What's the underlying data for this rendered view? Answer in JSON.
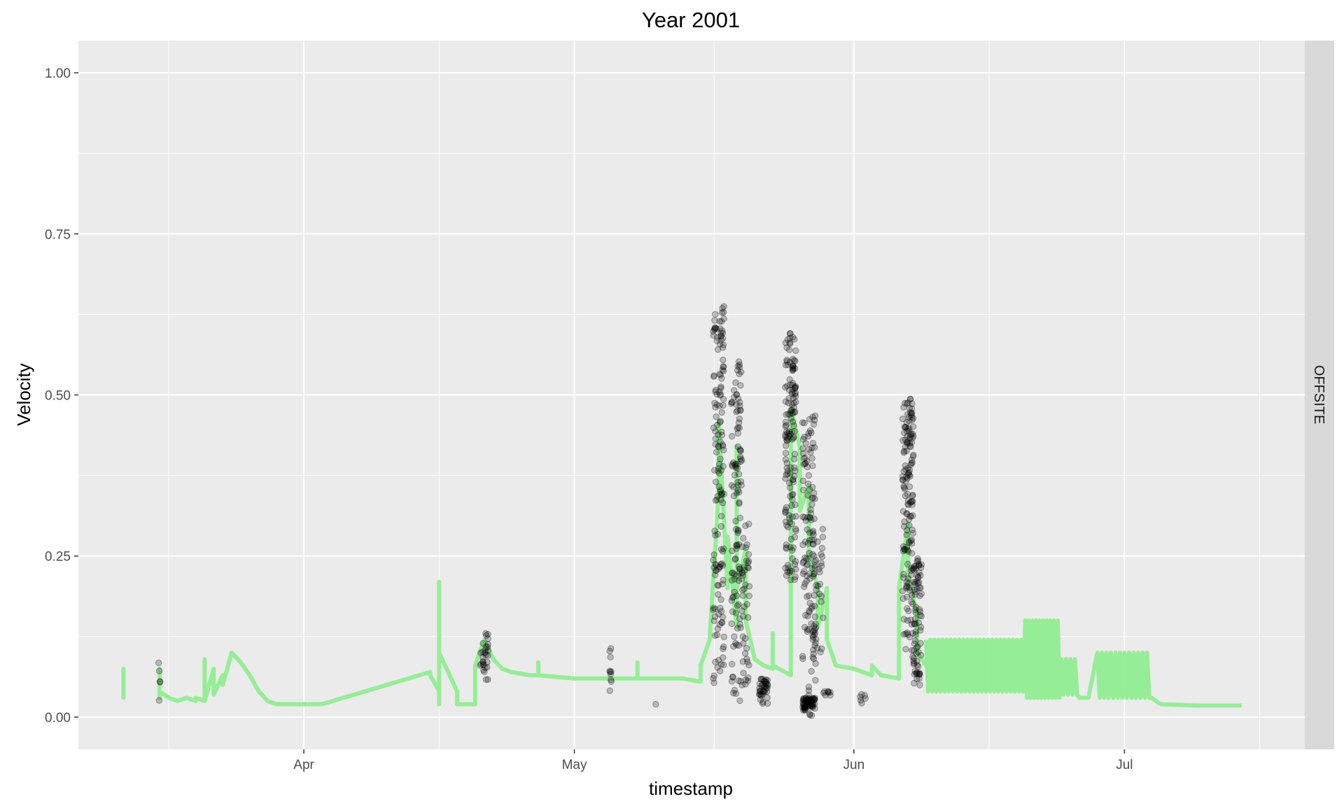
{
  "chart_data": {
    "type": "scatter",
    "title": "Year 2001",
    "xlabel": "timestamp",
    "ylabel": "Velocity",
    "facet_label": "OFFSITE",
    "x_axis": {
      "type": "date",
      "range": [
        "2001-03-07",
        "2001-07-21"
      ],
      "ticks": [
        {
          "date": "2001-04-01",
          "label": "Apr"
        },
        {
          "date": "2001-05-01",
          "label": "May"
        },
        {
          "date": "2001-06-01",
          "label": "Jun"
        },
        {
          "date": "2001-07-01",
          "label": "Jul"
        }
      ]
    },
    "y_axis": {
      "range": [
        -0.05,
        1.05
      ],
      "ticks": [
        {
          "value": 0,
          "label": "0.00"
        },
        {
          "value": 0.25,
          "label": "0.25"
        },
        {
          "value": 0.5,
          "label": "0.50"
        },
        {
          "value": 0.75,
          "label": "0.75"
        },
        {
          "value": 1,
          "label": "1.00"
        }
      ]
    },
    "grid": true,
    "colors": {
      "panel_bg": "#ebebeb",
      "grid": "#ffffff",
      "strip_bg": "#d9d9d9",
      "line": "#90ee90",
      "points": "#000000"
    },
    "series": [
      {
        "type": "line",
        "points": [
          [
            "2001-03-12",
            0.03
          ],
          [
            "2001-03-12",
            0.075
          ],
          [
            "2001-03-16",
            0.03
          ],
          [
            "2001-03-16",
            0.075
          ],
          [
            "2001-03-16",
            0.04
          ],
          [
            "2001-03-17",
            0.03
          ],
          [
            "2001-03-18",
            0.025
          ],
          [
            "2001-03-19",
            0.03
          ],
          [
            "2001-03-20",
            0.025
          ],
          [
            "2001-03-20",
            0.03
          ],
          [
            "2001-03-21",
            0.025
          ],
          [
            "2001-03-21",
            0.09
          ],
          [
            "2001-03-21",
            0.025
          ],
          [
            "2001-03-22",
            0.075
          ],
          [
            "2001-03-22",
            0.035
          ],
          [
            "2001-03-23",
            0.065
          ],
          [
            "2001-03-23",
            0.05
          ],
          [
            "2001-03-24",
            0.1
          ],
          [
            "2001-03-25",
            0.085
          ],
          [
            "2001-03-26",
            0.065
          ],
          [
            "2001-03-27",
            0.04
          ],
          [
            "2001-03-28",
            0.025
          ],
          [
            "2001-03-29",
            0.02
          ],
          [
            "2001-04-01",
            0.02
          ],
          [
            "2001-04-03",
            0.02
          ],
          [
            "2001-04-15",
            0.07
          ],
          [
            "2001-04-15",
            0.065
          ],
          [
            "2001-04-16",
            0.04
          ],
          [
            "2001-04-16",
            0.02
          ],
          [
            "2001-04-16",
            0.21
          ],
          [
            "2001-04-16",
            0.1
          ],
          [
            "2001-04-17",
            0.07
          ],
          [
            "2001-04-18",
            0.04
          ],
          [
            "2001-04-18",
            0.02
          ],
          [
            "2001-04-20",
            0.02
          ],
          [
            "2001-04-20",
            0.06
          ],
          [
            "2001-04-20",
            0.08
          ],
          [
            "2001-04-21",
            0.12
          ],
          [
            "2001-04-22",
            0.09
          ],
          [
            "2001-04-23",
            0.075
          ],
          [
            "2001-04-24",
            0.07
          ],
          [
            "2001-04-26",
            0.065
          ],
          [
            "2001-04-27",
            0.065
          ],
          [
            "2001-04-27",
            0.085
          ],
          [
            "2001-04-27",
            0.065
          ],
          [
            "2001-05-01",
            0.06
          ],
          [
            "2001-05-05",
            0.06
          ],
          [
            "2001-05-08",
            0.06
          ],
          [
            "2001-05-08",
            0.085
          ],
          [
            "2001-05-08",
            0.06
          ],
          [
            "2001-05-13",
            0.06
          ],
          [
            "2001-05-15",
            0.055
          ],
          [
            "2001-05-15",
            0.08
          ],
          [
            "2001-05-16",
            0.12
          ],
          [
            "2001-05-17",
            0.35
          ],
          [
            "2001-05-17",
            0.46
          ],
          [
            "2001-05-18",
            0.2
          ],
          [
            "2001-05-18",
            0.28
          ],
          [
            "2001-05-19",
            0.14
          ],
          [
            "2001-05-19",
            0.42
          ],
          [
            "2001-05-19",
            0.2
          ],
          [
            "2001-05-20",
            0.26
          ],
          [
            "2001-05-20",
            0.15
          ],
          [
            "2001-05-21",
            0.09
          ],
          [
            "2001-05-22",
            0.08
          ],
          [
            "2001-05-23",
            0.075
          ],
          [
            "2001-05-23",
            0.13
          ],
          [
            "2001-05-23",
            0.08
          ],
          [
            "2001-05-25",
            0.065
          ],
          [
            "2001-05-25",
            0.48
          ],
          [
            "2001-05-26",
            0.42
          ],
          [
            "2001-05-26",
            0.32
          ],
          [
            "2001-05-27",
            0.36
          ],
          [
            "2001-05-27",
            0.25
          ],
          [
            "2001-05-28",
            0.2
          ],
          [
            "2001-05-28",
            0.14
          ],
          [
            "2001-05-29",
            0.2
          ],
          [
            "2001-05-29",
            0.12
          ],
          [
            "2001-05-30",
            0.08
          ],
          [
            "2001-06-01",
            0.075
          ],
          [
            "2001-06-02",
            0.07
          ],
          [
            "2001-06-03",
            0.065
          ],
          [
            "2001-06-03",
            0.08
          ],
          [
            "2001-06-04",
            0.065
          ],
          [
            "2001-06-06",
            0.06
          ],
          [
            "2001-06-06",
            0.2
          ],
          [
            "2001-06-07",
            0.3
          ],
          [
            "2001-06-07",
            0.22
          ],
          [
            "2001-06-08",
            0.16
          ],
          [
            "2001-06-08",
            0.1
          ],
          [
            "2001-06-09",
            0.08
          ]
        ]
      },
      {
        "type": "line",
        "oscillating": true,
        "segments": [
          {
            "start": "2001-06-09",
            "end": "2001-06-20",
            "cycles": 24,
            "low": 0.04,
            "high": 0.12
          },
          {
            "start": "2001-06-20",
            "end": "2001-06-24",
            "cycles": 10,
            "low": 0.03,
            "high": 0.15
          },
          {
            "start": "2001-06-24",
            "end": "2001-06-26",
            "cycles": 4,
            "low": 0.035,
            "high": 0.09
          },
          {
            "start": "2001-06-26",
            "end": "2001-06-28",
            "cycles": 1,
            "low": 0.03,
            "high": 0.03
          },
          {
            "start": "2001-06-28",
            "end": "2001-07-04",
            "cycles": 12,
            "low": 0.03,
            "high": 0.1
          }
        ],
        "tail": [
          [
            "2001-07-04",
            0.03
          ],
          [
            "2001-07-05",
            0.02
          ],
          [
            "2001-07-09",
            0.018
          ],
          [
            "2001-07-14",
            0.018
          ]
        ]
      },
      {
        "type": "points",
        "point_clusters": [
          {
            "center": "2001-03-16",
            "spread_days": 0.1,
            "min": 0.0,
            "max": 0.09,
            "count": 5
          },
          {
            "center": "2001-04-21",
            "spread_days": 0.5,
            "min": 0.05,
            "max": 0.135,
            "count": 30
          },
          {
            "center": "2001-05-05",
            "spread_days": 0.1,
            "min": 0.03,
            "max": 0.115,
            "count": 10
          },
          {
            "center": "2001-05-10",
            "spread_days": 0.1,
            "min": 0.02,
            "max": 0.02,
            "count": 1
          },
          {
            "center": "2001-05-17",
            "spread_days": 0.6,
            "min": 0.05,
            "max": 0.64,
            "count": 150
          },
          {
            "center": "2001-05-19",
            "spread_days": 0.6,
            "min": 0.01,
            "max": 0.56,
            "count": 120
          },
          {
            "center": "2001-05-20",
            "spread_days": 0.4,
            "min": 0.05,
            "max": 0.3,
            "count": 40
          },
          {
            "center": "2001-05-22",
            "spread_days": 0.5,
            "min": 0.02,
            "max": 0.06,
            "count": 40
          },
          {
            "center": "2001-05-25",
            "spread_days": 0.6,
            "min": 0.2,
            "max": 0.6,
            "count": 150
          },
          {
            "center": "2001-05-27",
            "spread_days": 0.7,
            "min": 0.0,
            "max": 0.47,
            "count": 120
          },
          {
            "center": "2001-05-27",
            "spread_days": 0.7,
            "min": 0.01,
            "max": 0.03,
            "count": 60
          },
          {
            "center": "2001-05-28",
            "spread_days": 0.6,
            "min": 0.05,
            "max": 0.3,
            "count": 40
          },
          {
            "center": "2001-05-29",
            "spread_days": 0.4,
            "min": 0.03,
            "max": 0.04,
            "count": 8
          },
          {
            "center": "2001-06-02",
            "spread_days": 0.3,
            "min": 0.02,
            "max": 0.04,
            "count": 6
          },
          {
            "center": "2001-06-07",
            "spread_days": 0.6,
            "min": 0.1,
            "max": 0.5,
            "count": 150
          },
          {
            "center": "2001-06-08",
            "spread_days": 0.5,
            "min": 0.04,
            "max": 0.25,
            "count": 80
          }
        ]
      }
    ]
  }
}
